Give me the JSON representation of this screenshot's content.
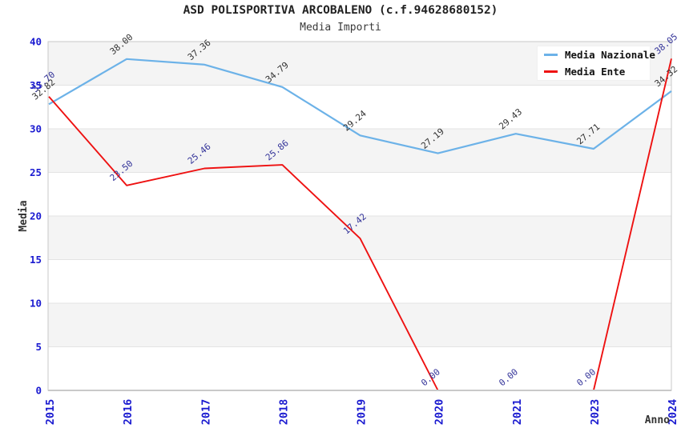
{
  "header": {
    "title": "ASD POLISPORTIVA ARCOBALENO (c.f.94628680152)",
    "subtitle": "Media Importi"
  },
  "legend": {
    "items": [
      {
        "label": "Media Nazionale",
        "color": "#6cb2e8"
      },
      {
        "label": "Media Ente",
        "color": "#ee1111"
      }
    ]
  },
  "chart_data": {
    "type": "line",
    "title": "ASD POLISPORTIVA ARCOBALENO (c.f.94628680152)",
    "subtitle": "Media Importi",
    "xlabel": "Anno",
    "ylabel": "Media",
    "categories": [
      "2015",
      "2016",
      "2017",
      "2018",
      "2019",
      "2020",
      "2021",
      "2023",
      "2024"
    ],
    "series": [
      {
        "name": "Media Nazionale",
        "color": "#6cb2e8",
        "label_color": "#333333",
        "values": [
          32.82,
          38.0,
          37.36,
          34.79,
          29.24,
          27.19,
          29.43,
          27.71,
          34.32
        ]
      },
      {
        "name": "Media Ente",
        "color": "#ee1111",
        "label_color": "#333399",
        "values": [
          33.7,
          23.5,
          25.46,
          25.86,
          17.42,
          0.0,
          0.0,
          0.0,
          38.05
        ]
      }
    ],
    "ylim": [
      0,
      40
    ],
    "ytick_step": 5,
    "yticks": [
      0,
      5,
      10,
      15,
      20,
      25,
      30,
      35,
      40
    ],
    "grid": "horizontal-bands-alternating",
    "legend_position": "top-right",
    "band_color_odd": "#f4f4f4",
    "band_color_even": "#ffffff",
    "gridline_color": "#e3e3e3",
    "border_color": "#c9c9c9",
    "tick_label_color": "#1a1ad0",
    "axis_title_color": "#333333",
    "value_label_decimals": 2
  }
}
